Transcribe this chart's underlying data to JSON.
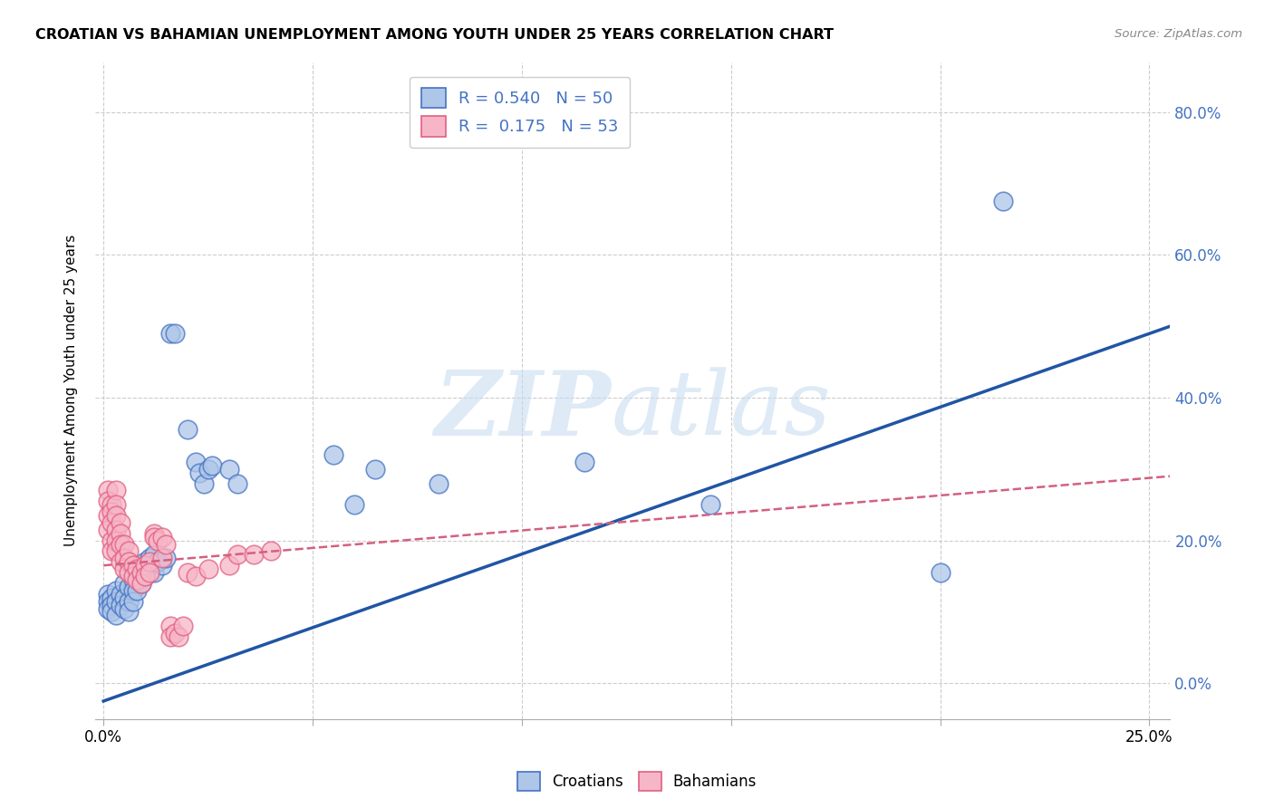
{
  "title": "CROATIAN VS BAHAMIAN UNEMPLOYMENT AMONG YOUTH UNDER 25 YEARS CORRELATION CHART",
  "source": "Source: ZipAtlas.com",
  "xlabel_ticks": [
    "0.0%",
    "",
    "",
    "",
    "",
    "25.0%"
  ],
  "xlabel_vals": [
    0.0,
    0.05,
    0.1,
    0.15,
    0.2,
    0.25
  ],
  "ylabel_ticks": [
    "0.0%",
    "20.0%",
    "40.0%",
    "60.0%",
    "80.0%"
  ],
  "ylabel_vals": [
    0.0,
    0.2,
    0.4,
    0.6,
    0.8
  ],
  "ylabel_label": "Unemployment Among Youth under 25 years",
  "xlim": [
    -0.002,
    0.255
  ],
  "ylim": [
    -0.05,
    0.87
  ],
  "legend_labels": [
    "Croatians",
    "Bahamians"
  ],
  "croatian_R": 0.54,
  "croatian_N": 50,
  "bahamian_R": 0.175,
  "bahamian_N": 53,
  "croatian_color": "#aec6e8",
  "bahamian_color": "#f7b6c8",
  "croatian_edge_color": "#4472c4",
  "bahamian_edge_color": "#e06080",
  "croatian_line_color": "#2055a4",
  "bahamian_line_color": "#d46080",
  "croatian_scatter": [
    [
      0.001,
      0.125
    ],
    [
      0.001,
      0.115
    ],
    [
      0.001,
      0.105
    ],
    [
      0.002,
      0.12
    ],
    [
      0.002,
      0.11
    ],
    [
      0.002,
      0.1
    ],
    [
      0.003,
      0.13
    ],
    [
      0.003,
      0.115
    ],
    [
      0.003,
      0.095
    ],
    [
      0.004,
      0.125
    ],
    [
      0.004,
      0.11
    ],
    [
      0.005,
      0.14
    ],
    [
      0.005,
      0.12
    ],
    [
      0.005,
      0.105
    ],
    [
      0.006,
      0.135
    ],
    [
      0.006,
      0.115
    ],
    [
      0.006,
      0.1
    ],
    [
      0.007,
      0.145
    ],
    [
      0.007,
      0.13
    ],
    [
      0.007,
      0.115
    ],
    [
      0.008,
      0.155
    ],
    [
      0.008,
      0.13
    ],
    [
      0.009,
      0.16
    ],
    [
      0.009,
      0.14
    ],
    [
      0.01,
      0.17
    ],
    [
      0.01,
      0.15
    ],
    [
      0.011,
      0.175
    ],
    [
      0.012,
      0.18
    ],
    [
      0.012,
      0.155
    ],
    [
      0.013,
      0.17
    ],
    [
      0.014,
      0.165
    ],
    [
      0.015,
      0.175
    ],
    [
      0.016,
      0.49
    ],
    [
      0.017,
      0.49
    ],
    [
      0.02,
      0.355
    ],
    [
      0.022,
      0.31
    ],
    [
      0.023,
      0.295
    ],
    [
      0.024,
      0.28
    ],
    [
      0.025,
      0.3
    ],
    [
      0.026,
      0.305
    ],
    [
      0.03,
      0.3
    ],
    [
      0.032,
      0.28
    ],
    [
      0.055,
      0.32
    ],
    [
      0.06,
      0.25
    ],
    [
      0.065,
      0.3
    ],
    [
      0.08,
      0.28
    ],
    [
      0.115,
      0.31
    ],
    [
      0.145,
      0.25
    ],
    [
      0.2,
      0.155
    ],
    [
      0.215,
      0.675
    ]
  ],
  "bahamian_scatter": [
    [
      0.001,
      0.27
    ],
    [
      0.001,
      0.255
    ],
    [
      0.001,
      0.235
    ],
    [
      0.001,
      0.215
    ],
    [
      0.002,
      0.25
    ],
    [
      0.002,
      0.24
    ],
    [
      0.002,
      0.225
    ],
    [
      0.002,
      0.2
    ],
    [
      0.002,
      0.185
    ],
    [
      0.003,
      0.27
    ],
    [
      0.003,
      0.25
    ],
    [
      0.003,
      0.235
    ],
    [
      0.003,
      0.215
    ],
    [
      0.003,
      0.2
    ],
    [
      0.003,
      0.185
    ],
    [
      0.004,
      0.225
    ],
    [
      0.004,
      0.21
    ],
    [
      0.004,
      0.195
    ],
    [
      0.004,
      0.17
    ],
    [
      0.005,
      0.195
    ],
    [
      0.005,
      0.175
    ],
    [
      0.005,
      0.16
    ],
    [
      0.006,
      0.185
    ],
    [
      0.006,
      0.17
    ],
    [
      0.006,
      0.155
    ],
    [
      0.007,
      0.165
    ],
    [
      0.007,
      0.15
    ],
    [
      0.008,
      0.16
    ],
    [
      0.008,
      0.145
    ],
    [
      0.009,
      0.155
    ],
    [
      0.009,
      0.14
    ],
    [
      0.01,
      0.165
    ],
    [
      0.01,
      0.15
    ],
    [
      0.011,
      0.17
    ],
    [
      0.011,
      0.155
    ],
    [
      0.012,
      0.21
    ],
    [
      0.012,
      0.205
    ],
    [
      0.013,
      0.2
    ],
    [
      0.014,
      0.205
    ],
    [
      0.014,
      0.175
    ],
    [
      0.015,
      0.195
    ],
    [
      0.016,
      0.08
    ],
    [
      0.016,
      0.065
    ],
    [
      0.017,
      0.07
    ],
    [
      0.018,
      0.065
    ],
    [
      0.019,
      0.08
    ],
    [
      0.02,
      0.155
    ],
    [
      0.022,
      0.15
    ],
    [
      0.025,
      0.16
    ],
    [
      0.03,
      0.165
    ],
    [
      0.032,
      0.18
    ],
    [
      0.036,
      0.18
    ],
    [
      0.04,
      0.185
    ]
  ],
  "croatian_trendline_x": [
    0.0,
    0.255
  ],
  "croatian_trendline_y": [
    -0.025,
    0.5
  ],
  "bahamian_trendline_x": [
    0.0,
    0.255
  ],
  "bahamian_trendline_y": [
    0.165,
    0.29
  ],
  "background_color": "#ffffff",
  "grid_color": "#cccccc",
  "ylabel_right_color": "#4472c4"
}
